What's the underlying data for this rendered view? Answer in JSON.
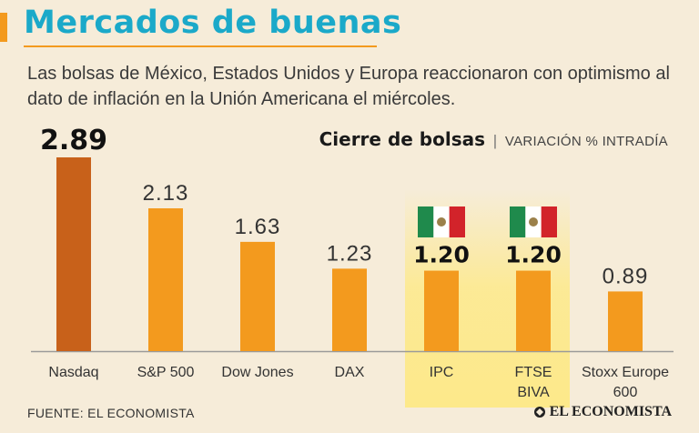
{
  "header": {
    "title": "Mercados de buenas",
    "subtitle": "Las bolsas de México, Estados Unidos y Europa reaccionaron con optimismo al dato de inflación en la Unión Americana el miércoles."
  },
  "chart_header": {
    "title": "Cierre de bolsas",
    "separator": "|",
    "subtitle": "VARIACIÓN % INTRADÍA"
  },
  "footer": {
    "source": "FUENTE: EL ECONOMISTA",
    "brand": "EL ECONOMISTA"
  },
  "colors": {
    "accent": "#f39a1e",
    "highlight_bar": "#c8611a",
    "bar": "#f39a1e",
    "highlight_bg": "#fde98a",
    "title": "#1ba9c9",
    "flag_green": "#1f8a4c",
    "flag_red": "#d2232a"
  },
  "chart_data": {
    "type": "bar",
    "title": "Cierre de bolsas",
    "subtitle": "VARIACIÓN % INTRADÍA",
    "xlabel": "",
    "ylabel": "Variación % intradía",
    "ylim": [
      0,
      3.0
    ],
    "grid": false,
    "categories": [
      "Nasdaq",
      "S&P 500",
      "Dow Jones",
      "DAX",
      "IPC",
      "FTSE BIVA",
      "Stoxx Europe 600"
    ],
    "category_lines": [
      [
        "Nasdaq"
      ],
      [
        "S&P 500"
      ],
      [
        "Dow Jones"
      ],
      [
        "DAX"
      ],
      [
        "IPC"
      ],
      [
        "FTSE",
        "BIVA"
      ],
      [
        "Stoxx  Europe",
        "600"
      ]
    ],
    "values": [
      2.89,
      2.13,
      1.63,
      1.23,
      1.2,
      1.2,
      0.89
    ],
    "value_labels": [
      "2.89",
      "2.13",
      "1.63",
      "1.23",
      "1.20",
      "1.20",
      "0.89"
    ],
    "bold_labels": [
      true,
      false,
      false,
      false,
      true,
      true,
      false
    ],
    "highlighted": [
      false,
      false,
      false,
      false,
      true,
      true,
      false
    ],
    "flags": [
      false,
      false,
      false,
      false,
      true,
      true,
      false
    ],
    "max_bar": [
      true,
      false,
      false,
      false,
      false,
      false,
      false
    ]
  }
}
